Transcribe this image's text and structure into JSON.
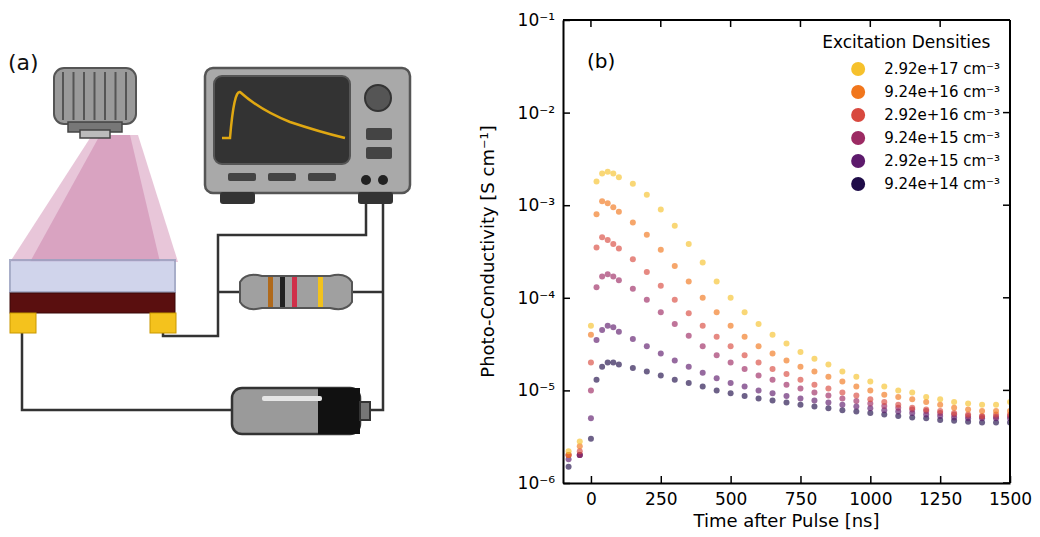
{
  "diagram": {
    "label": "(a)"
  },
  "chart_data": {
    "type": "scatter",
    "annotations": [
      {
        "text": "(b)"
      }
    ],
    "x_label": "Time after Pulse [ns]",
    "y_label": "Photo-Conductivity [S cm⁻¹]",
    "legend_title": "Excitation Densities",
    "legend": "upper right",
    "log": "y",
    "marker": "circle",
    "xlim": [
      -100,
      1500
    ],
    "xticks": [
      0,
      250,
      500,
      750,
      1000,
      1250,
      1500
    ],
    "ylim": [
      1e-06,
      0.1
    ],
    "yticks": [
      {
        "value": 1e-06,
        "label": "10⁻⁶"
      },
      {
        "value": 1e-05,
        "label": "10⁻⁵"
      },
      {
        "value": 0.0001,
        "label": "10⁻⁴"
      },
      {
        "value": 0.001,
        "label": "10⁻³"
      },
      {
        "value": 0.01,
        "label": "10⁻²"
      },
      {
        "value": 0.1,
        "label": "10⁻¹"
      }
    ],
    "x": [
      -80,
      -40,
      0,
      20,
      40,
      60,
      80,
      100,
      150,
      200,
      250,
      300,
      350,
      400,
      450,
      500,
      550,
      600,
      650,
      700,
      750,
      800,
      850,
      900,
      950,
      1000,
      1050,
      1100,
      1150,
      1200,
      1250,
      1300,
      1350,
      1400,
      1450,
      1500
    ],
    "series": [
      {
        "name": "2.92e+17 cm⁻³",
        "color": "#f6c12c",
        "values": [
          2.2e-06,
          2.8e-06,
          5e-05,
          0.0018,
          0.0022,
          0.0023,
          0.0022,
          0.002,
          0.0017,
          0.0013,
          0.0009,
          0.0006,
          0.00038,
          0.00024,
          0.00015,
          0.0001,
          7e-05,
          5.2e-05,
          4e-05,
          3.2e-05,
          2.6e-05,
          2.2e-05,
          1.9e-05,
          1.6e-05,
          1.4e-05,
          1.25e-05,
          1.1e-05,
          1e-05,
          9.5e-06,
          8.5e-06,
          8e-06,
          7.5e-06,
          7.2e-06,
          7e-06,
          7e-06,
          7.5e-06
        ]
      },
      {
        "name": "9.24e+16 cm⁻³",
        "color": "#f1761c",
        "values": [
          2e-06,
          2.5e-06,
          4e-05,
          0.0008,
          0.0011,
          0.00105,
          0.00095,
          0.00085,
          0.00065,
          0.00048,
          0.00033,
          0.00022,
          0.00015,
          0.0001,
          7e-05,
          5e-05,
          3.8e-05,
          3e-05,
          2.5e-05,
          2.1e-05,
          1.8e-05,
          1.6e-05,
          1.4e-05,
          1.25e-05,
          1.1e-05,
          1e-05,
          9e-06,
          8.5e-06,
          8e-06,
          7.5e-06,
          7e-06,
          6.5e-06,
          6.2e-06,
          6e-06,
          6e-06,
          6e-06
        ]
      },
      {
        "name": "2.92e+16 cm⁻³",
        "color": "#d8493f",
        "values": [
          2e-06,
          2.2e-06,
          2e-05,
          0.00035,
          0.00045,
          0.00042,
          0.00038,
          0.00034,
          0.00026,
          0.00019,
          0.000135,
          9.5e-05,
          6.8e-05,
          5e-05,
          3.8e-05,
          3e-05,
          2.4e-05,
          2e-05,
          1.7e-05,
          1.5e-05,
          1.3e-05,
          1.15e-05,
          1.05e-05,
          9.5e-06,
          8.8e-06,
          8e-06,
          7.5e-06,
          7e-06,
          6.5e-06,
          6.2e-06,
          6e-06,
          5.7e-06,
          5.5e-06,
          5.3e-06,
          5.5e-06,
          5.5e-06
        ]
      },
      {
        "name": "9.24e+15 cm⁻³",
        "color": "#9c2a63",
        "values": [
          2e-06,
          2e-06,
          1e-05,
          0.00013,
          0.00017,
          0.00018,
          0.00017,
          0.000155,
          0.000125,
          9.5e-05,
          7e-05,
          5.2e-05,
          3.9e-05,
          3e-05,
          2.4e-05,
          2e-05,
          1.7e-05,
          1.45e-05,
          1.3e-05,
          1.15e-05,
          1.05e-05,
          9.5e-06,
          8.8e-06,
          8.2e-06,
          7.7e-06,
          7.2e-06,
          6.8e-06,
          6.5e-06,
          6.2e-06,
          6e-06,
          5.7e-06,
          5.5e-06,
          5.3e-06,
          5.2e-06,
          5.2e-06,
          5.3e-06
        ]
      },
      {
        "name": "2.92e+15 cm⁻³",
        "color": "#5d1a6c",
        "values": [
          1.8e-06,
          2e-06,
          5e-06,
          3.5e-05,
          4.5e-05,
          5e-05,
          4.8e-05,
          4.3e-05,
          3.6e-05,
          3e-05,
          2.5e-05,
          2.1e-05,
          1.8e-05,
          1.55e-05,
          1.35e-05,
          1.2e-05,
          1.1e-05,
          1e-05,
          9.3e-06,
          8.7e-06,
          8.2e-06,
          7.8e-06,
          7.4e-06,
          7e-06,
          6.7e-06,
          6.4e-06,
          6.1e-06,
          5.9e-06,
          5.7e-06,
          5.5e-06,
          5.3e-06,
          5.1e-06,
          5e-06,
          5e-06,
          5e-06,
          5e-06
        ]
      },
      {
        "name": "9.24e+14 cm⁻³",
        "color": "#1f0c48",
        "values": [
          1.5e-06,
          2e-06,
          3e-06,
          1.3e-05,
          1.8e-05,
          2e-05,
          2e-05,
          1.9e-05,
          1.75e-05,
          1.6e-05,
          1.45e-05,
          1.3e-05,
          1.2e-05,
          1.1e-05,
          1e-05,
          9.3e-06,
          8.7e-06,
          8.2e-06,
          7.8e-06,
          7.4e-06,
          7e-06,
          6.7e-06,
          6.4e-06,
          6.1e-06,
          5.9e-06,
          5.7e-06,
          5.5e-06,
          5.3e-06,
          5.1e-06,
          5e-06,
          4.8e-06,
          4.7e-06,
          4.6e-06,
          4.5e-06,
          4.5e-06,
          4.5e-06
        ]
      }
    ]
  }
}
